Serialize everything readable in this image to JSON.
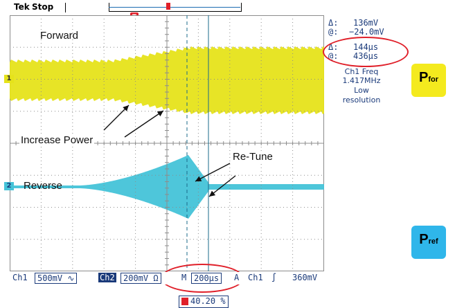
{
  "topbar": {
    "brand": "Tek",
    "state": "Stop",
    "trigger_marker": "T"
  },
  "scope": {
    "ch1_marker": "1",
    "ch2_marker": "2"
  },
  "annotations": {
    "forward": "Forward",
    "increase_power": "Increase Power",
    "re_tune": "Re-Tune",
    "reverse": "Reverse"
  },
  "readouts": {
    "delta_v_symbol": "Δ:",
    "delta_v": "136mV",
    "at_v_symbol": "@:",
    "at_v": "−24.0mV",
    "delta_t_symbol": "Δ:",
    "delta_t": "144µs",
    "at_t_symbol": "@:",
    "at_t": "436µs",
    "ch1_freq_label": "Ch1 Freq",
    "ch1_freq_value": "1.417MHz",
    "resolution_1": "Low",
    "resolution_2": "resolution"
  },
  "bottombar": {
    "ch1_label": "Ch1",
    "ch1_scale": "500mV",
    "ch1_coupling": "∿",
    "ch2_label": "Ch2",
    "ch2_scale": "200mV",
    "ch2_impedance": "Ω",
    "m_label": "M",
    "timebase": "200µs",
    "a_label": "A",
    "trig_source": "Ch1",
    "trig_slope": "∫",
    "trig_level": "360mV",
    "trigger_position": "40.20 %"
  },
  "badges": {
    "pfor_main": "P",
    "pfor_sub": "for",
    "pref_main": "P",
    "pref_sub": "ref"
  },
  "colors": {
    "ch1": "#e6e31a",
    "ch2": "#45c3d8",
    "grid": "#8c8c8c",
    "readout": "#1a3a7a",
    "highlight": "#e0202a",
    "pfor_badge": "#f4ea1e",
    "pref_badge": "#2fb6ea"
  }
}
